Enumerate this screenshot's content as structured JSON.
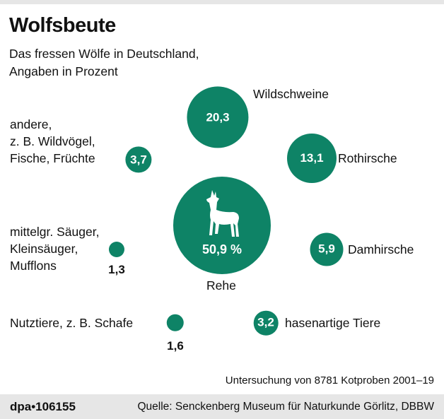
{
  "title": "Wolfsbeute",
  "subtitle_line1": "Das fressen Wölfe in Deutschland,",
  "subtitle_line2": "Angaben in Prozent",
  "note": "Untersuchung von 8781 Kotproben 2001–19",
  "footer": {
    "agency": "dpa•106155",
    "source": "Quelle: Senckenberg Museum für Naturkunde Görlitz, DBBW"
  },
  "colors": {
    "bubble": "#0e8366",
    "footer_bg": "#e6e6e6"
  },
  "chart_data": {
    "type": "bubble",
    "title": "Wolfsbeute",
    "unit": "Prozent",
    "items": [
      {
        "name": "Rehe",
        "value": 50.9,
        "label": "50,9 %",
        "icon": "deer-icon"
      },
      {
        "name": "Wildschweine",
        "value": 20.3,
        "label": "20,3"
      },
      {
        "name": "Rothirsche",
        "value": 13.1,
        "label": "13,1"
      },
      {
        "name": "Damhirsche",
        "value": 5.9,
        "label": "5,9"
      },
      {
        "name": "andere, z. B. Wildvögel, Fische, Früchte",
        "lines": [
          "andere,",
          "z. B. Wildvögel,",
          "Fische, Früchte"
        ],
        "value": 3.7,
        "label": "3,7"
      },
      {
        "name": "hasenartige Tiere",
        "value": 3.2,
        "label": "3,2"
      },
      {
        "name": "Nutztiere, z. B. Schafe",
        "value": 1.6,
        "label": "1,6"
      },
      {
        "name": "mittelgr. Säuger, Kleinsäuger, Mufflons",
        "lines": [
          "mittelgr. Säuger,",
          "Kleinsäuger,",
          "Mufflons"
        ],
        "value": 1.3,
        "label": "1,3"
      }
    ]
  }
}
